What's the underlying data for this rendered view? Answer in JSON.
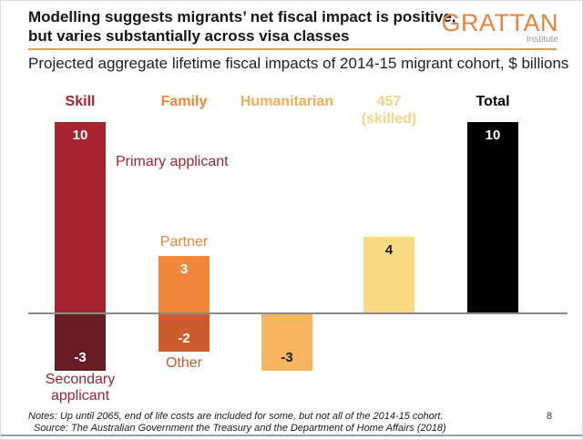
{
  "header": {
    "title_line1": "Modelling suggests migrants’ net fiscal impact is positive,",
    "title_line2": "but varies substantially across visa classes",
    "logo_name": "GRATTAN",
    "logo_sub": "Institute",
    "subtitle": "Projected aggregate lifetime fiscal impacts of 2014-15 migrant cohort, $ billions"
  },
  "chart_data": {
    "type": "bar",
    "title": "Projected aggregate lifetime fiscal impacts of 2014-15 migrant cohort, $ billions",
    "unit": "$ billions",
    "ylim": [
      -4,
      10
    ],
    "grid": false,
    "zero_line": true,
    "groups": [
      {
        "label": "Skill",
        "color": "#A5242F",
        "bars": [
          {
            "name": "Primary applicant",
            "value": 10,
            "color": "#A5242F",
            "label_color": "#ffffff"
          },
          {
            "name": "Secondary applicant",
            "value": -3,
            "color": "#671D25",
            "label_color": "#ffffff"
          }
        ]
      },
      {
        "label": "Family",
        "color": "#EE8634",
        "bars": [
          {
            "name": "Partner",
            "value": 3,
            "color": "#F0873B",
            "label_color": "#ffffff"
          },
          {
            "name": "Other",
            "value": -2,
            "color": "#CC5C2E",
            "label_color": "#ffffff"
          }
        ]
      },
      {
        "label": "Humanitarian",
        "color": "#F2AC55",
        "bars": [
          {
            "name": "Humanitarian",
            "value": -3,
            "color": "#F7B55F",
            "label_color": "#1a1a1a"
          }
        ]
      },
      {
        "label": "457\n(skilled)",
        "color": "#F8D383",
        "bars": [
          {
            "name": "457 (skilled)",
            "value": 4,
            "color": "#FAD983",
            "label_color": "#1a1a1a"
          }
        ]
      },
      {
        "label": "Total",
        "color": "#000000",
        "bars": [
          {
            "name": "Total",
            "value": 10,
            "color": "#000000",
            "label_color": "#ffffff"
          }
        ]
      }
    ],
    "annotations": {
      "primary": "Primary applicant",
      "partner": "Partner",
      "other": "Other",
      "secondary": "Secondary applicant"
    }
  },
  "footer": {
    "notes": "Notes: Up until 2065, end of life costs are included for some, but not all of the 2014-15 cohort.",
    "source": "Source: The Australian Government the Treasury and the Department of Home Affairs (2018)",
    "page_number": "8"
  }
}
